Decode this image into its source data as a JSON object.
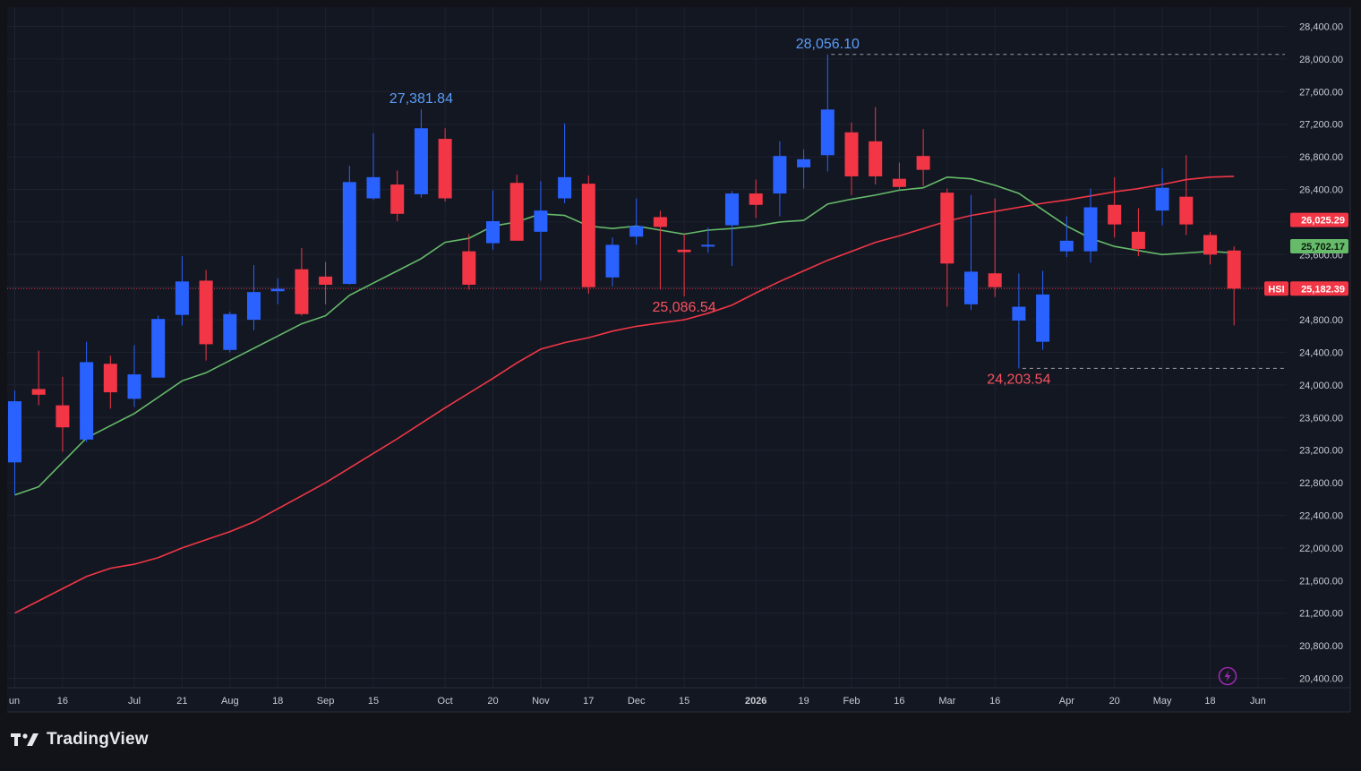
{
  "brand": {
    "name": "TradingView"
  },
  "chart_data": {
    "type": "candlestick",
    "symbol": "HSI",
    "timeframe": "weekly",
    "ylim": [
      20200,
      28600
    ],
    "y_ticks": [
      "28,400.00",
      "28,000.00",
      "27,600.00",
      "27,200.00",
      "26,800.00",
      "26,400.00",
      "26,000.00",
      "25,600.00",
      "25,200.00",
      "24,800.00",
      "24,400.00",
      "24,000.00",
      "23,600.00",
      "23,200.00",
      "22,800.00",
      "22,400.00",
      "22,000.00",
      "21,600.00",
      "21,200.00",
      "20,800.00",
      "20,400.00"
    ],
    "x_ticks": [
      {
        "label": "un",
        "week": 0
      },
      {
        "label": "16",
        "week": 2
      },
      {
        "label": "Jul",
        "week": 5
      },
      {
        "label": "21",
        "week": 7
      },
      {
        "label": "Aug",
        "week": 9
      },
      {
        "label": "18",
        "week": 11
      },
      {
        "label": "Sep",
        "week": 13
      },
      {
        "label": "15",
        "week": 15
      },
      {
        "label": "Oct",
        "week": 18
      },
      {
        "label": "20",
        "week": 20
      },
      {
        "label": "Nov",
        "week": 22
      },
      {
        "label": "17",
        "week": 24
      },
      {
        "label": "Dec",
        "week": 26
      },
      {
        "label": "15",
        "week": 28
      },
      {
        "label": "2026",
        "week": 31,
        "bold": true
      },
      {
        "label": "19",
        "week": 33
      },
      {
        "label": "Feb",
        "week": 35
      },
      {
        "label": "16",
        "week": 37
      },
      {
        "label": "Mar",
        "week": 39
      },
      {
        "label": "16",
        "week": 41
      },
      {
        "label": "Apr",
        "week": 44
      },
      {
        "label": "20",
        "week": 46
      },
      {
        "label": "May",
        "week": 48
      },
      {
        "label": "18",
        "week": 50
      },
      {
        "label": "Jun",
        "week": 52
      }
    ],
    "candles": [
      {
        "o": 23050,
        "h": 23930,
        "l": 22650,
        "c": 23800
      },
      {
        "o": 23950,
        "h": 24420,
        "l": 23750,
        "c": 23880
      },
      {
        "o": 23750,
        "h": 24100,
        "l": 23180,
        "c": 23480
      },
      {
        "o": 23330,
        "h": 24530,
        "l": 23300,
        "c": 24280
      },
      {
        "o": 24260,
        "h": 24360,
        "l": 23710,
        "c": 23910
      },
      {
        "o": 23830,
        "h": 24490,
        "l": 23730,
        "c": 24130
      },
      {
        "o": 24090,
        "h": 24850,
        "l": 24090,
        "c": 24810
      },
      {
        "o": 24860,
        "h": 25580,
        "l": 24730,
        "c": 25270
      },
      {
        "o": 25280,
        "h": 25410,
        "l": 24300,
        "c": 24500
      },
      {
        "o": 24430,
        "h": 24900,
        "l": 24400,
        "c": 24870
      },
      {
        "o": 24800,
        "h": 25470,
        "l": 24670,
        "c": 25140
      },
      {
        "o": 25150,
        "h": 25310,
        "l": 24990,
        "c": 25180
      },
      {
        "o": 25420,
        "h": 25680,
        "l": 24850,
        "c": 24870
      },
      {
        "o": 25330,
        "h": 25510,
        "l": 24990,
        "c": 25230
      },
      {
        "o": 25240,
        "h": 26690,
        "l": 25230,
        "c": 26490
      },
      {
        "o": 26290,
        "h": 27090,
        "l": 26270,
        "c": 26550
      },
      {
        "o": 26460,
        "h": 26630,
        "l": 26010,
        "c": 26100
      },
      {
        "o": 26340,
        "h": 27381.84,
        "l": 26300,
        "c": 27150
      },
      {
        "o": 27020,
        "h": 27150,
        "l": 26250,
        "c": 26290
      },
      {
        "o": 25640,
        "h": 25850,
        "l": 25170,
        "c": 25230
      },
      {
        "o": 25740,
        "h": 26390,
        "l": 25660,
        "c": 26010
      },
      {
        "o": 26480,
        "h": 26580,
        "l": 25810,
        "c": 25770
      },
      {
        "o": 25880,
        "h": 26500,
        "l": 25280,
        "c": 26140
      },
      {
        "o": 26290,
        "h": 27210,
        "l": 26230,
        "c": 26550
      },
      {
        "o": 26470,
        "h": 26570,
        "l": 25120,
        "c": 25200
      },
      {
        "o": 25320,
        "h": 25810,
        "l": 25210,
        "c": 25720
      },
      {
        "o": 25820,
        "h": 26290,
        "l": 25720,
        "c": 25950
      },
      {
        "o": 26060,
        "h": 26140,
        "l": 25170,
        "c": 25940
      },
      {
        "o": 25660,
        "h": 25850,
        "l": 25086.54,
        "c": 25630
      },
      {
        "o": 25700,
        "h": 25930,
        "l": 25620,
        "c": 25720
      },
      {
        "o": 25960,
        "h": 26380,
        "l": 25460,
        "c": 26350
      },
      {
        "o": 26350,
        "h": 26520,
        "l": 26050,
        "c": 26210
      },
      {
        "o": 26350,
        "h": 26990,
        "l": 26070,
        "c": 26810
      },
      {
        "o": 26670,
        "h": 26890,
        "l": 26410,
        "c": 26770
      },
      {
        "o": 26820,
        "h": 28056.1,
        "l": 26620,
        "c": 27380
      },
      {
        "o": 27100,
        "h": 27220,
        "l": 26330,
        "c": 26560
      },
      {
        "o": 26990,
        "h": 27410,
        "l": 26460,
        "c": 26560
      },
      {
        "o": 26530,
        "h": 26730,
        "l": 26390,
        "c": 26430
      },
      {
        "o": 26810,
        "h": 27140,
        "l": 26440,
        "c": 26640
      },
      {
        "o": 26360,
        "h": 26410,
        "l": 24960,
        "c": 25490
      },
      {
        "o": 24990,
        "h": 26330,
        "l": 24920,
        "c": 25390
      },
      {
        "o": 25370,
        "h": 26290,
        "l": 25080,
        "c": 25200
      },
      {
        "o": 24790,
        "h": 25370,
        "l": 24203.54,
        "c": 24960
      },
      {
        "o": 24530,
        "h": 25400,
        "l": 24430,
        "c": 25110
      },
      {
        "o": 25640,
        "h": 26070,
        "l": 25570,
        "c": 25770
      },
      {
        "o": 25640,
        "h": 26410,
        "l": 25500,
        "c": 26180
      },
      {
        "o": 26210,
        "h": 26550,
        "l": 25810,
        "c": 25970
      },
      {
        "o": 25880,
        "h": 26170,
        "l": 25580,
        "c": 25670
      },
      {
        "o": 26140,
        "h": 26660,
        "l": 25960,
        "c": 26420
      },
      {
        "o": 26310,
        "h": 26820,
        "l": 25840,
        "c": 25970
      },
      {
        "o": 25840,
        "h": 25880,
        "l": 25480,
        "c": 25600
      },
      {
        "o": 25650,
        "h": 25700,
        "l": 24730,
        "c": 25182.39
      }
    ],
    "sma_fast": {
      "name": "MA",
      "color": "#66bb6a",
      "values": [
        22650,
        22750,
        23050,
        23350,
        23500,
        23650,
        23850,
        24050,
        24150,
        24300,
        24450,
        24600,
        24750,
        24850,
        25100,
        25250,
        25400,
        25550,
        25750,
        25800,
        25950,
        26000,
        26100,
        26080,
        25950,
        25920,
        25950,
        25900,
        25850,
        25900,
        25920,
        25950,
        26000,
        26020,
        26220,
        26280,
        26330,
        26390,
        26420,
        26550,
        26530,
        26450,
        26350,
        26150,
        25950,
        25800,
        25700,
        25650,
        25600,
        25620,
        25640,
        25620
      ]
    },
    "sma_slow": {
      "name": "MA",
      "color": "#f23645",
      "values": [
        21200,
        21350,
        21500,
        21650,
        21750,
        21800,
        21880,
        22000,
        22100,
        22200,
        22320,
        22480,
        22640,
        22800,
        22980,
        23160,
        23340,
        23530,
        23720,
        23900,
        24080,
        24270,
        24440,
        24520,
        24580,
        24660,
        24720,
        24760,
        24800,
        24880,
        24980,
        25130,
        25270,
        25400,
        25530,
        25640,
        25750,
        25830,
        25920,
        26010,
        26080,
        26130,
        26180,
        26230,
        26270,
        26320,
        26370,
        26410,
        26460,
        26520,
        26550,
        26560
      ]
    },
    "annotations": [
      {
        "text": "27,381.84",
        "kind": "high",
        "week": 17,
        "price": 27381.84
      },
      {
        "text": "28,056.10",
        "kind": "high",
        "week": 34,
        "price": 28056.1
      },
      {
        "text": "25,086.54",
        "kind": "low",
        "week": 28,
        "price": 25086.54
      },
      {
        "text": "24,203.54",
        "kind": "low",
        "week": 42,
        "price": 24203.54
      }
    ],
    "price_labels": [
      {
        "text": "26,025.29",
        "value": 26025.29,
        "color": "#f23645",
        "text_color": "#ffffff"
      },
      {
        "text": "25,702.17",
        "value": 25702.17,
        "color": "#66bb6a",
        "text_color": "#0b1a0b"
      },
      {
        "text": "25,182.39",
        "value": 25182.39,
        "color": "#f23645",
        "text_color": "#ffffff",
        "tag": "HSI"
      }
    ],
    "colors": {
      "up": "#2962ff",
      "down": "#f23645",
      "background": "#131722",
      "grid": "#1e2230",
      "high_label": "#5b9cf6",
      "low_label": "#f7525f",
      "axis_text": "#c9ccd4"
    }
  }
}
